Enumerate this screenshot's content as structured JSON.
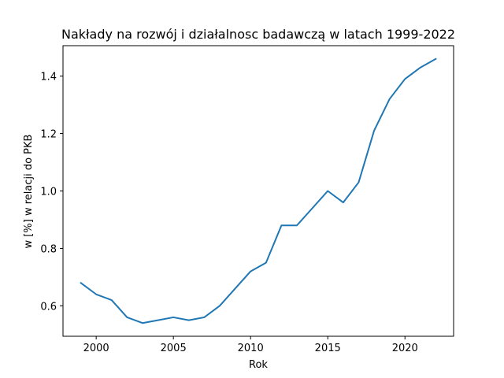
{
  "chart_data": {
    "type": "line",
    "title": "Nakłady na rozwój i działalnosc badawczą w latach 1999-2022",
    "xlabel": "Rok",
    "ylabel": "w [%] w relacji do PKB",
    "xlim": [
      1997.85,
      2023.15
    ],
    "ylim": [
      0.494,
      1.506
    ],
    "xticks": [
      2000,
      2005,
      2010,
      2015,
      2020
    ],
    "xtick_labels": [
      "2000",
      "2005",
      "2010",
      "2015",
      "2020"
    ],
    "yticks": [
      0.6,
      0.8,
      1.0,
      1.2,
      1.4
    ],
    "ytick_labels": [
      "0.6",
      "0.8",
      "1.0",
      "1.2",
      "1.4"
    ],
    "grid": false,
    "series": [
      {
        "color": "#1f77b4",
        "x": [
          1999,
          2000,
          2001,
          2002,
          2003,
          2004,
          2005,
          2006,
          2007,
          2008,
          2009,
          2010,
          2011,
          2012,
          2013,
          2014,
          2015,
          2016,
          2017,
          2018,
          2019,
          2020,
          2021,
          2022
        ],
        "y": [
          0.68,
          0.64,
          0.62,
          0.56,
          0.54,
          0.55,
          0.56,
          0.55,
          0.56,
          0.6,
          0.66,
          0.72,
          0.75,
          0.88,
          0.88,
          0.94,
          1.0,
          0.96,
          1.03,
          1.21,
          1.32,
          1.39,
          1.43,
          1.46
        ]
      }
    ]
  }
}
